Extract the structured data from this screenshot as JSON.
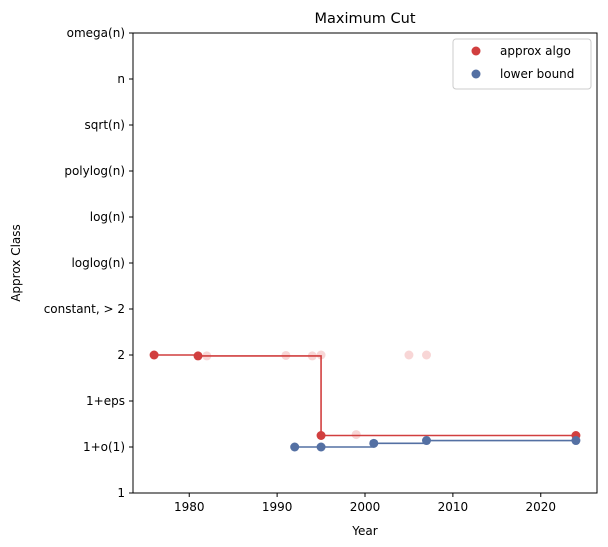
{
  "chart_data": {
    "type": "scatter",
    "title": "Maximum Cut",
    "xlabel": "Year",
    "ylabel": "Approx Class",
    "xlim": [
      1973.6,
      2026.4
    ],
    "ylim": [
      0,
      10
    ],
    "xticks": [
      1980,
      1990,
      2000,
      2010,
      2020
    ],
    "ytick_labels": [
      "1",
      "1+o(1)",
      "1+eps",
      "2",
      "constant, > 2",
      "loglog(n)",
      "log(n)",
      "polylog(n)",
      "sqrt(n)",
      "n",
      "omega(n)"
    ],
    "grid": false,
    "legend": {
      "placement": "top-right",
      "entries": [
        {
          "label": "approx algo",
          "color": "#d13f3f"
        },
        {
          "label": "lower bound",
          "color": "#5470a3"
        }
      ]
    },
    "series": [
      {
        "name": "approx algo",
        "color": "#d13f3f",
        "faded_color": "#f6c8c8",
        "frontier": [
          {
            "x": 1976,
            "y": 3.0
          },
          {
            "x": 1981,
            "y": 2.98
          },
          {
            "x": 1995,
            "y": 2.98
          },
          {
            "x": 1995,
            "y": 1.25
          },
          {
            "x": 2024,
            "y": 1.25
          }
        ],
        "points": [
          {
            "x": 1976,
            "y": 3.0
          },
          {
            "x": 1981,
            "y": 2.98
          },
          {
            "x": 1995,
            "y": 1.25
          },
          {
            "x": 2024,
            "y": 1.25
          }
        ],
        "faded_points": [
          {
            "x": 1982,
            "y": 2.98
          },
          {
            "x": 1991,
            "y": 2.99
          },
          {
            "x": 1994,
            "y": 2.98
          },
          {
            "x": 1995,
            "y": 3.0
          },
          {
            "x": 1999,
            "y": 1.27
          },
          {
            "x": 2005,
            "y": 3.0
          },
          {
            "x": 2007,
            "y": 3.0
          }
        ]
      },
      {
        "name": "lower bound",
        "color": "#5470a3",
        "frontier": [
          {
            "x": 1992,
            "y": 1.0
          },
          {
            "x": 1995,
            "y": 1.0
          },
          {
            "x": 2001,
            "y": 1.08
          },
          {
            "x": 2007,
            "y": 1.14
          },
          {
            "x": 2024,
            "y": 1.14
          }
        ],
        "points": [
          {
            "x": 1992,
            "y": 1.0
          },
          {
            "x": 1995,
            "y": 1.0
          },
          {
            "x": 2001,
            "y": 1.08
          },
          {
            "x": 2007,
            "y": 1.14
          },
          {
            "x": 2024,
            "y": 1.14
          }
        ]
      }
    ]
  }
}
